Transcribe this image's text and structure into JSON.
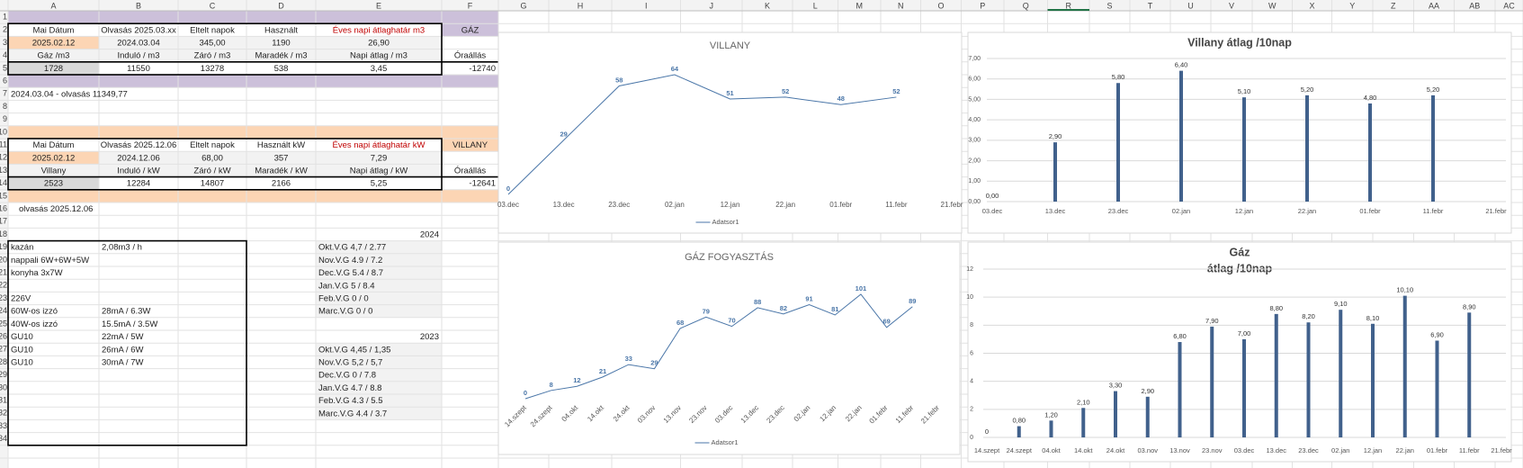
{
  "sheet": {
    "columns": [
      "A",
      "B",
      "C",
      "D",
      "E",
      "F",
      "G",
      "H",
      "I",
      "J",
      "K",
      "L",
      "M",
      "N",
      "O",
      "P",
      "Q",
      "R",
      "S",
      "T",
      "U",
      "V",
      "W",
      "X",
      "Y",
      "Z",
      "AA",
      "AB",
      "AC"
    ],
    "row_numbers": [
      "1",
      "2",
      "3",
      "4",
      "5",
      "6",
      "7",
      "8",
      "9",
      "10",
      "11",
      "12",
      "13",
      "14",
      "15",
      "16",
      "17",
      "18",
      "19",
      "20",
      "21",
      "22",
      "23",
      "24",
      "25",
      "26",
      "27",
      "28",
      "29",
      "30",
      "31",
      "32",
      "33",
      "34"
    ],
    "rows": [
      [
        null,
        null,
        null,
        null,
        null,
        null
      ],
      [
        "Mai Dátum",
        "Olvasás 2025.03.xx",
        "Eltelt napok",
        "Használt",
        "Éves napi átlaghatár m3",
        "GÁZ"
      ],
      [
        "2025.02.12",
        "2024.03.04",
        "345,00",
        "1190",
        "26,90",
        null
      ],
      [
        "Gáz /m3",
        "Induló / m3",
        "Záró / m3",
        "Maradék / m3",
        "Napi átlag / m3",
        "Óraállás"
      ],
      [
        "1728",
        "11550",
        "13278",
        "538",
        "3,45",
        "-12740"
      ],
      [
        null,
        null,
        null,
        null,
        null,
        null
      ],
      [
        "2024.03.04 - olvasás 11349,77",
        null,
        null,
        null,
        null,
        null
      ],
      [
        null,
        null,
        null,
        null,
        null,
        null
      ],
      [
        null,
        null,
        null,
        null,
        null,
        null
      ],
      [
        null,
        null,
        null,
        null,
        null,
        null
      ],
      [
        "Mai Dátum",
        "Olvasás 2025.12.06",
        "Eltelt napok",
        "Használt kW",
        "Éves napi átlaghatár kW",
        "VILLANY"
      ],
      [
        "2025.02.12",
        "2024.12.06",
        "68,00",
        "357",
        "7,29",
        null
      ],
      [
        "Villany",
        "Induló / kW",
        "Záró / kW",
        "Maradék / kW",
        "Napi átlag / kW",
        "Óraállás"
      ],
      [
        "2523",
        "12284",
        "14807",
        "2166",
        "5,25",
        "-12641"
      ],
      [
        null,
        null,
        null,
        null,
        null,
        null
      ],
      [
        "olvasás 2025.12.06",
        null,
        null,
        null,
        null,
        null
      ],
      [
        null,
        null,
        null,
        null,
        null,
        null
      ],
      [
        null,
        null,
        null,
        null,
        "2024",
        null
      ],
      [
        "kazán",
        "2,08m3 / h",
        null,
        null,
        "Okt.V.G 4,7 / 2.77",
        null
      ],
      [
        "nappali 6W+6W+5W",
        null,
        null,
        null,
        "Nov.V.G 4.9 / 7.2",
        null
      ],
      [
        "konyha 3x7W",
        null,
        null,
        null,
        "Dec.V.G 5.4 / 8.7",
        null
      ],
      [
        null,
        null,
        null,
        null,
        "Jan.V.G  5 / 8.4",
        null
      ],
      [
        "226V",
        null,
        null,
        null,
        "Feb.V.G  0 / 0",
        null
      ],
      [
        "60W-os izzó",
        "28mA / 6.3W",
        null,
        null,
        "Marc.V.G  0 / 0",
        null
      ],
      [
        "40W-os izzó",
        "15.5mA / 3.5W",
        null,
        null,
        null,
        null
      ],
      [
        "GU10",
        "22mA / 5W",
        null,
        null,
        "2023",
        null
      ],
      [
        "GU10",
        "26mA / 6W",
        null,
        null,
        "Okt.V.G  4,45 / 1,35",
        null
      ],
      [
        "GU10",
        "30mA / 7W",
        null,
        null,
        "Nov.V.G 5,2 /  5,7",
        null
      ],
      [
        null,
        null,
        null,
        null,
        "Dec.V.G  0 / 7.8",
        null
      ],
      [
        null,
        null,
        null,
        null,
        "Jan.V.G  4.7 / 8.8",
        null
      ],
      [
        null,
        null,
        null,
        null,
        "Feb.V.G  4.3 / 5.5",
        null
      ],
      [
        null,
        null,
        null,
        null,
        "Marc.V.G  4.4 / 3.7",
        null
      ],
      [
        null,
        null,
        null,
        null,
        null,
        null
      ],
      [
        null,
        null,
        null,
        null,
        null,
        null
      ]
    ]
  },
  "charts": [
    {
      "type": "line",
      "title": "VILLANY",
      "categories": [
        "03.dec",
        "13.dec",
        "23.dec",
        "02.jan",
        "12.jan",
        "22.jan",
        "01.febr",
        "11.febr",
        "21.febr"
      ],
      "series": [
        {
          "name": "Adatsor1",
          "color": "#4a76a8",
          "values": [
            0,
            29,
            58,
            64,
            51,
            52,
            48,
            52,
            null
          ]
        }
      ]
    },
    {
      "type": "bar",
      "title": "Villany átlag /10nap",
      "categories": [
        "03.dec",
        "13.dec",
        "23.dec",
        "02.jan",
        "12.jan",
        "22.jan",
        "01.febr",
        "11.febr",
        "21.febr"
      ],
      "series": [
        {
          "color": "#41618c",
          "values": [
            0,
            2.9,
            5.8,
            6.4,
            5.1,
            5.2,
            4.8,
            5.2,
            null
          ],
          "value_labels": [
            "0,00",
            "2,90",
            "5,80",
            "6,40",
            "5,10",
            "5,20",
            "4,80",
            "5,20",
            null
          ]
        }
      ],
      "ylim": [
        0,
        7
      ],
      "yticks": [
        {
          "value": 0,
          "label": "0,00"
        },
        {
          "value": 1,
          "label": "1,00"
        },
        {
          "value": 2,
          "label": "2,00"
        },
        {
          "value": 3,
          "label": "3,00"
        },
        {
          "value": 4,
          "label": "4,00"
        },
        {
          "value": 5,
          "label": "5,00"
        },
        {
          "value": 6,
          "label": "6,00"
        },
        {
          "value": 7,
          "label": "7,00"
        }
      ],
      "grid": true
    },
    {
      "type": "line",
      "title": "GÁZ FOGYASZTÁS",
      "categories": [
        "14.szept",
        "24.szept",
        "04.okt",
        "14.okt",
        "24.okt",
        "03.nov",
        "13.nov",
        "23.nov",
        "03.dec",
        "13.dec",
        "23.dec",
        "02.jan",
        "12.jan",
        "22.jan",
        "01.febr",
        "11.febr",
        "21.febr"
      ],
      "series": [
        {
          "name": "Adatsor1",
          "color": "#4a76a8",
          "values": [
            0,
            8,
            12,
            21,
            33,
            29,
            68,
            79,
            70,
            88,
            82,
            91,
            81,
            101,
            69,
            89,
            null
          ]
        }
      ]
    },
    {
      "type": "bar",
      "title": [
        "Gáz",
        "átlag /10nap"
      ],
      "categories": [
        "14.szept",
        "24.szept",
        "04.okt",
        "14.okt",
        "24.okt",
        "03.nov",
        "13.nov",
        "23.nov",
        "03.dec",
        "13.dec",
        "23.dec",
        "02.jan",
        "12.jan",
        "22.jan",
        "01.febr",
        "11.febr",
        "21.febr"
      ],
      "series": [
        {
          "color": "#41618c",
          "values": [
            0,
            0.8,
            1.2,
            2.1,
            3.3,
            2.9,
            6.8,
            7.9,
            7.0,
            8.8,
            8.2,
            9.1,
            8.1,
            10.1,
            6.9,
            8.9,
            null
          ],
          "value_labels": [
            "0",
            "0,80",
            "1,20",
            "2,10",
            "3,30",
            "2,90",
            "6,80",
            "7,90",
            "7,00",
            "8,80",
            "8,20",
            "9,10",
            "8,10",
            "10,10",
            "6,90",
            "8,90",
            null
          ]
        }
      ],
      "ylim": [
        0,
        12
      ],
      "yticks": [
        0,
        2,
        4,
        6,
        8,
        10,
        12
      ],
      "grid": true
    }
  ]
}
